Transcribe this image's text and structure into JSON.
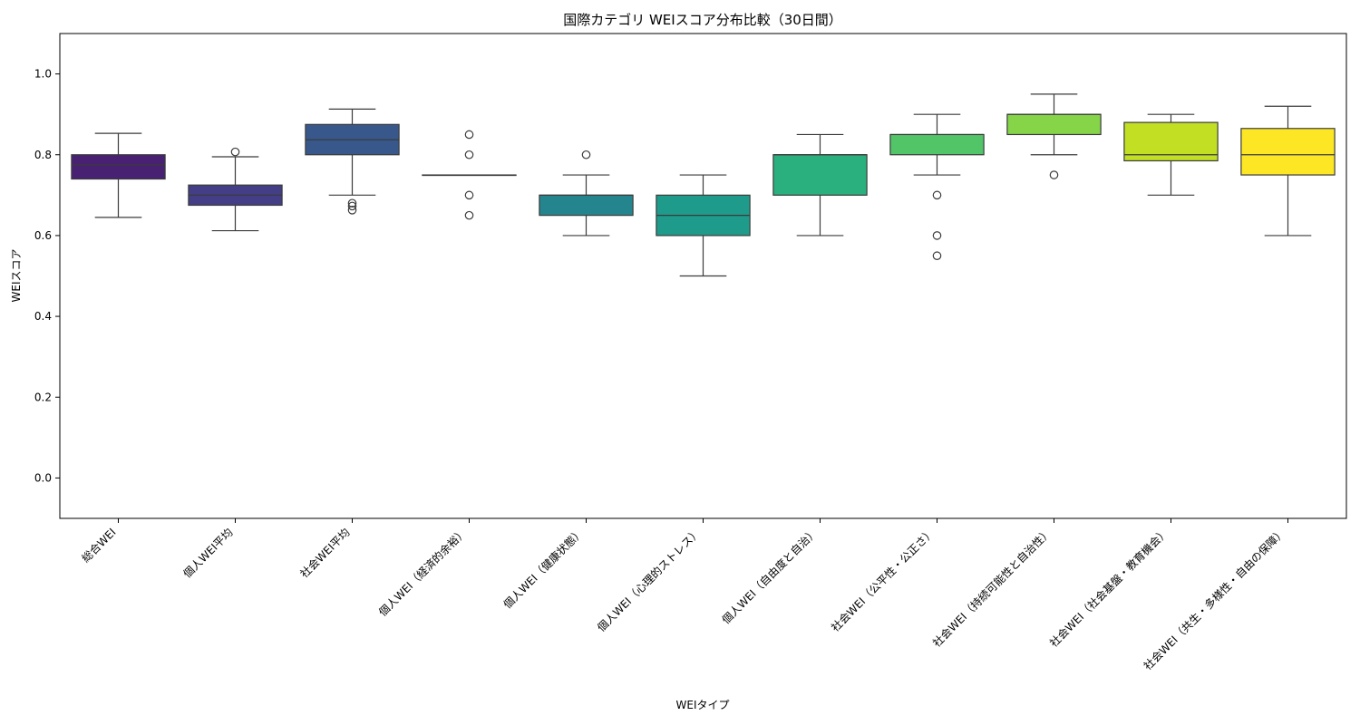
{
  "chart_data": {
    "type": "box",
    "title": "国際カテゴリ WEIスコア分布比較（30日間）",
    "xlabel": "WEIタイプ",
    "ylabel": "WEIスコア",
    "ylim": [
      -0.1,
      1.1
    ],
    "yticks": [
      "0.0",
      "0.2",
      "0.4",
      "0.6",
      "0.8",
      "1.0"
    ],
    "ytick_values": [
      0.0,
      0.2,
      0.4,
      0.6,
      0.8,
      1.0
    ],
    "grid": false,
    "categories": [
      "総合WEI",
      "個人WEI平均",
      "社会WEI平均",
      "個人WEI（経済的余裕）",
      "個人WEI（健康状態）",
      "個人WEI（心理的ストレス）",
      "個人WEI（自由度と自治）",
      "社会WEI（公平性・公正さ）",
      "社会WEI（持続可能性と自治性）",
      "社会WEI（社会基盤・教育機会）",
      "社会WEI（共生・多様性・自由の保障）"
    ],
    "boxes": [
      {
        "whisker_low": 0.645,
        "q1": 0.74,
        "median": 0.775,
        "q3": 0.8,
        "whisker_high": 0.853,
        "outliers": [],
        "color": "#482173"
      },
      {
        "whisker_low": 0.612,
        "q1": 0.675,
        "median": 0.7,
        "q3": 0.725,
        "whisker_high": 0.795,
        "outliers": [
          0.807
        ],
        "color": "#433e85"
      },
      {
        "whisker_low": 0.7,
        "q1": 0.8,
        "median": 0.837,
        "q3": 0.875,
        "whisker_high": 0.913,
        "outliers": [
          0.663,
          0.673,
          0.68
        ],
        "color": "#38588c"
      },
      {
        "whisker_low": 0.75,
        "q1": 0.75,
        "median": 0.75,
        "q3": 0.75,
        "whisker_high": 0.75,
        "outliers": [
          0.65,
          0.7,
          0.8,
          0.85
        ],
        "color": "#2d708e"
      },
      {
        "whisker_low": 0.6,
        "q1": 0.65,
        "median": 0.7,
        "q3": 0.7,
        "whisker_high": 0.75,
        "outliers": [
          0.8
        ],
        "color": "#25858e"
      },
      {
        "whisker_low": 0.5,
        "q1": 0.6,
        "median": 0.65,
        "q3": 0.7,
        "whisker_high": 0.75,
        "outliers": [],
        "color": "#1e9b8a"
      },
      {
        "whisker_low": 0.6,
        "q1": 0.7,
        "median": 0.8,
        "q3": 0.8,
        "whisker_high": 0.85,
        "outliers": [],
        "color": "#2ab07f"
      },
      {
        "whisker_low": 0.75,
        "q1": 0.8,
        "median": 0.85,
        "q3": 0.85,
        "whisker_high": 0.9,
        "outliers": [
          0.55,
          0.6,
          0.7
        ],
        "color": "#52c569"
      },
      {
        "whisker_low": 0.8,
        "q1": 0.85,
        "median": 0.9,
        "q3": 0.9,
        "whisker_high": 0.95,
        "outliers": [
          0.75
        ],
        "color": "#86d549"
      },
      {
        "whisker_low": 0.7,
        "q1": 0.785,
        "median": 0.8,
        "q3": 0.88,
        "whisker_high": 0.9,
        "outliers": [],
        "color": "#c2df23"
      },
      {
        "whisker_low": 0.6,
        "q1": 0.75,
        "median": 0.8,
        "q3": 0.865,
        "whisker_high": 0.92,
        "outliers": [],
        "color": "#fde725"
      }
    ]
  }
}
